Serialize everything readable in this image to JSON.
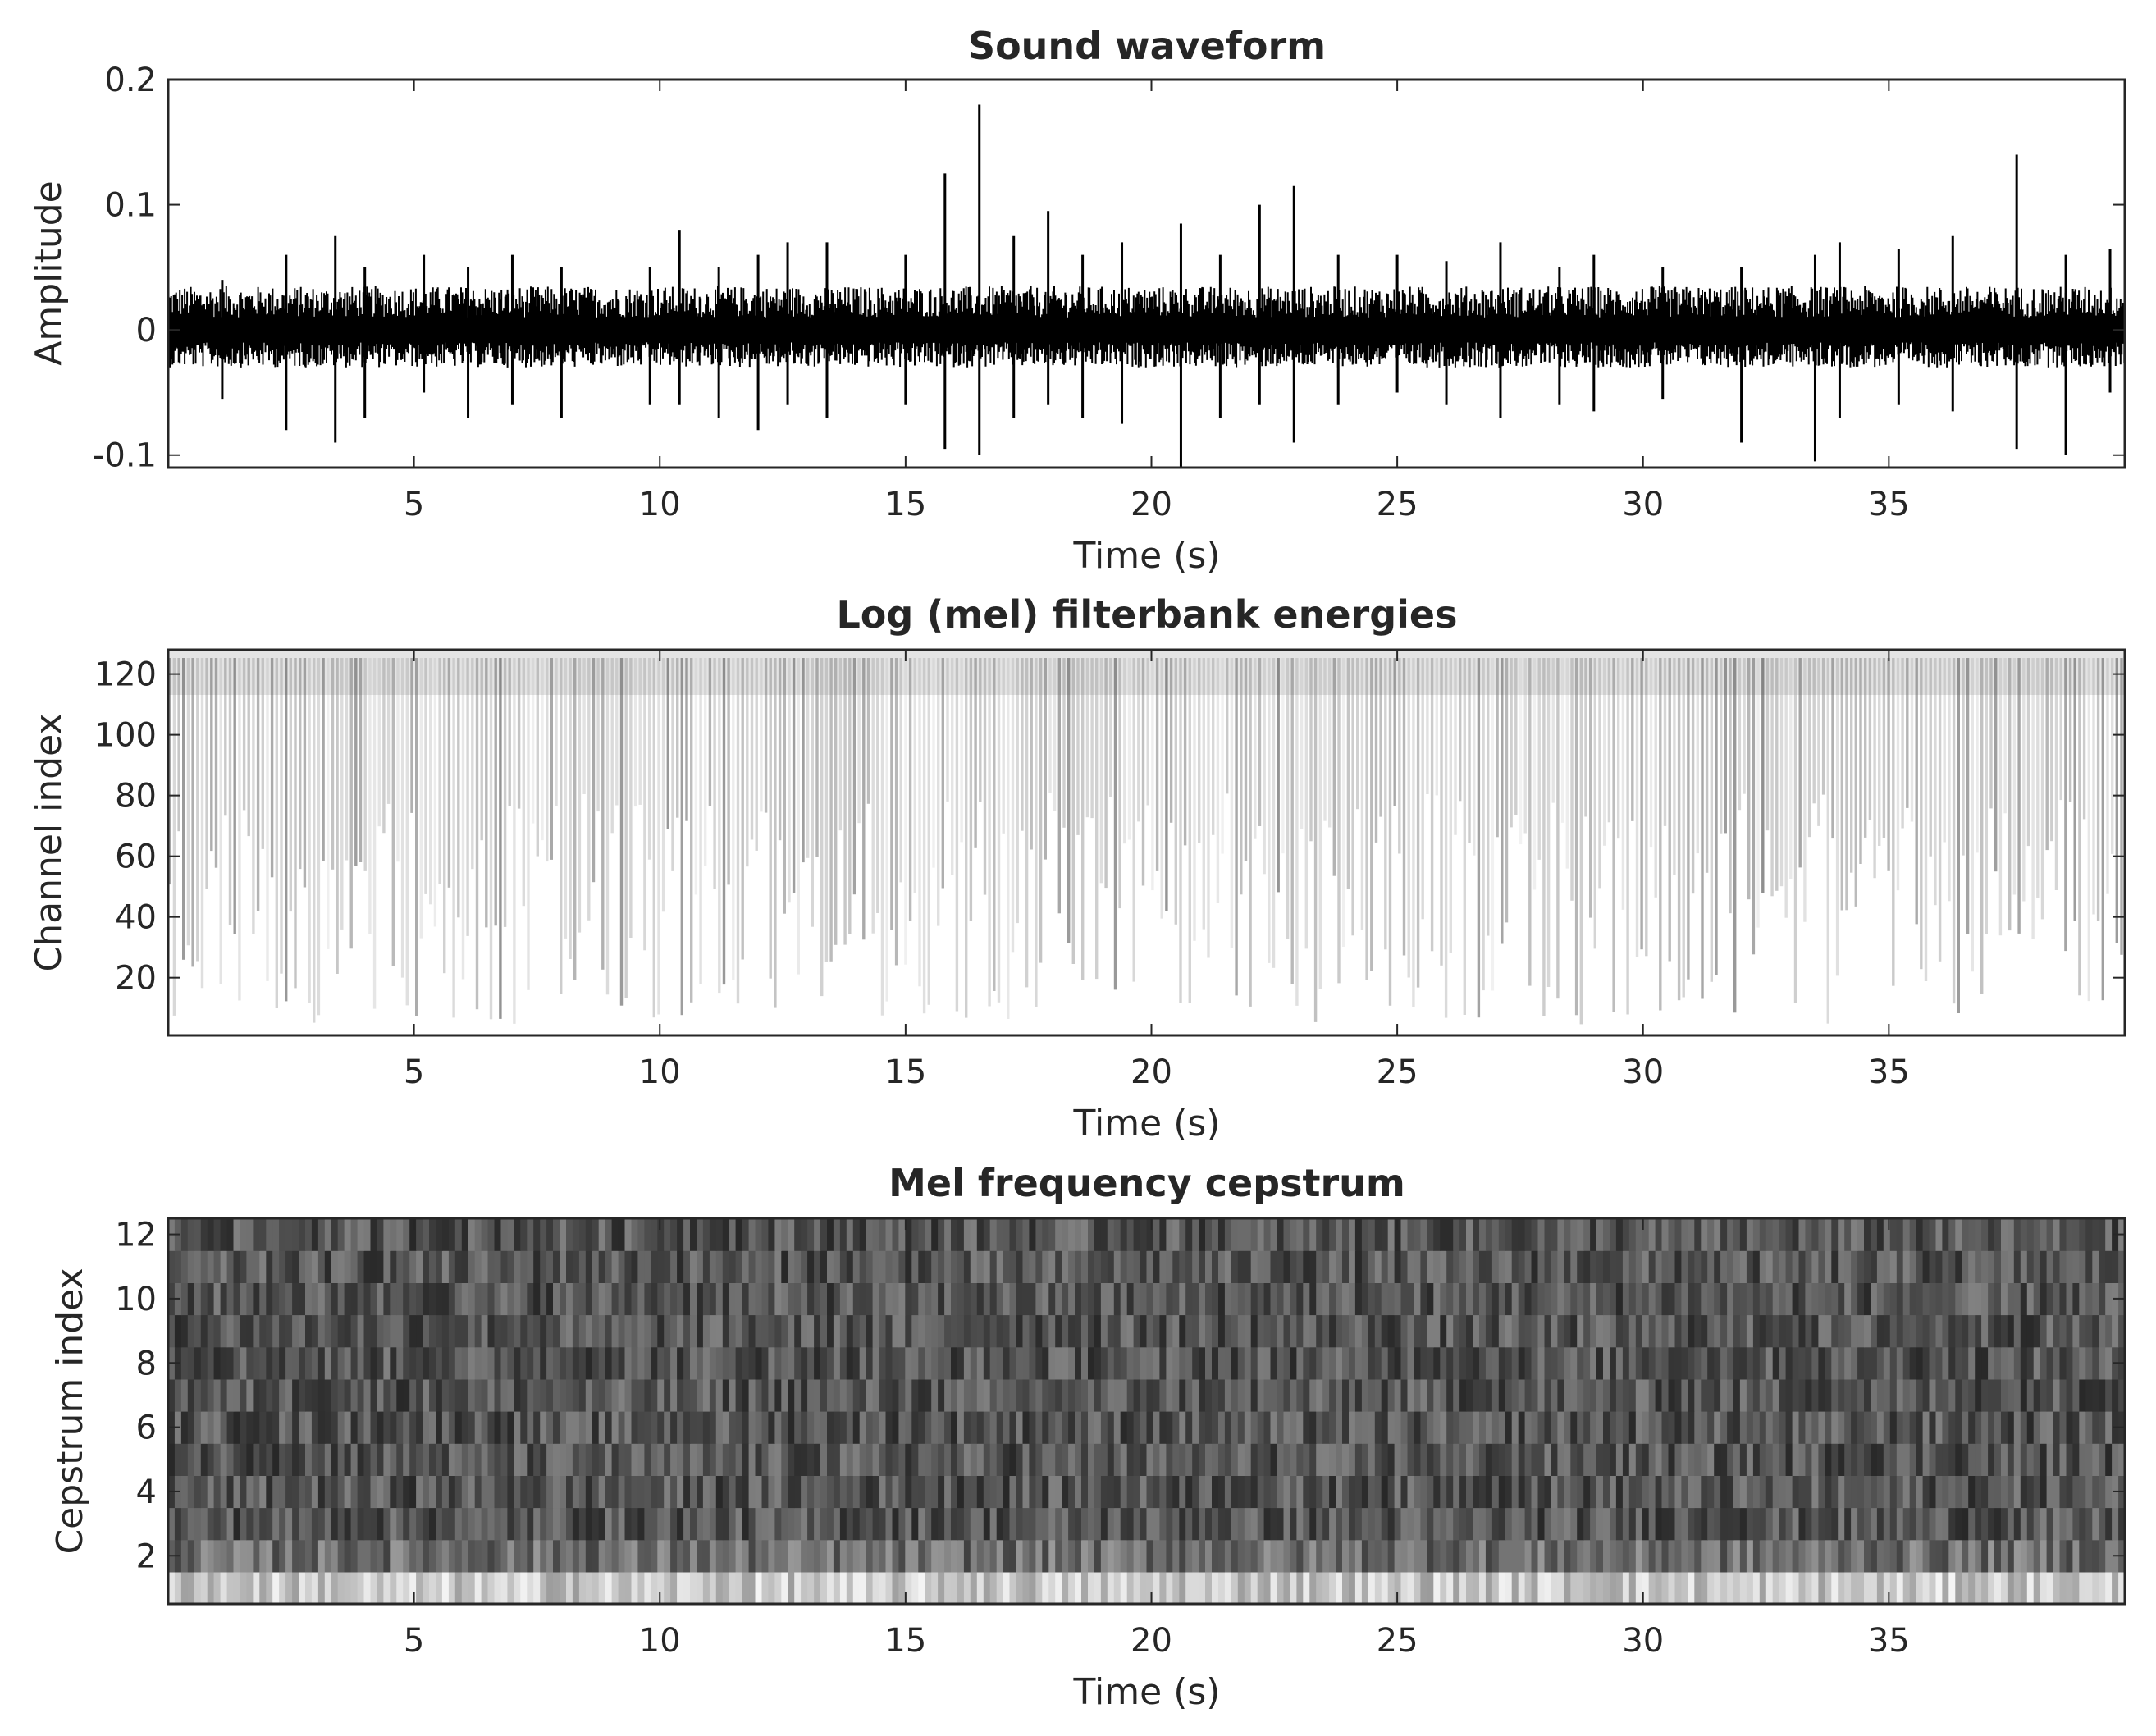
{
  "chart_data": [
    {
      "type": "line",
      "title": "Sound waveform",
      "xlabel": "Time (s)",
      "ylabel": "Amplitude",
      "xlim": [
        0,
        39.8
      ],
      "ylim": [
        -0.11,
        0.2
      ],
      "xticks": [
        5,
        10,
        15,
        20,
        25,
        30,
        35
      ],
      "xtick_labels": [
        "5",
        "10",
        "15",
        "20",
        "25",
        "30",
        "35"
      ],
      "yticks": [
        -0.1,
        0,
        0.1,
        0.2
      ],
      "ytick_labels": [
        "-0.1",
        "0",
        "0.1",
        "0.2"
      ],
      "series": [
        {
          "x": [
            1.1,
            2.4,
            3.4,
            4.0,
            5.2,
            6.1,
            7.0,
            8.0,
            9.8,
            10.4,
            11.2,
            12.0,
            12.6,
            13.4,
            15.0,
            15.8,
            16.5,
            17.2,
            17.9,
            18.6,
            19.4,
            20.6,
            21.4,
            22.2,
            22.9,
            23.8,
            25.0,
            26.0,
            27.1,
            28.3,
            29.0,
            30.4,
            32.0,
            33.5,
            34.0,
            35.2,
            36.3,
            37.6,
            38.6,
            39.5
          ],
          "y_max": [
            0.04,
            0.06,
            0.075,
            0.05,
            0.06,
            0.05,
            0.06,
            0.05,
            0.05,
            0.08,
            0.05,
            0.06,
            0.07,
            0.07,
            0.06,
            0.125,
            0.18,
            0.075,
            0.095,
            0.06,
            0.07,
            0.085,
            0.06,
            0.1,
            0.115,
            0.06,
            0.06,
            0.055,
            0.07,
            0.05,
            0.06,
            0.05,
            0.05,
            0.06,
            0.07,
            0.065,
            0.075,
            0.14,
            0.06,
            0.065
          ],
          "y_min": [
            -0.055,
            -0.08,
            -0.09,
            -0.07,
            -0.05,
            -0.07,
            -0.06,
            -0.07,
            -0.06,
            -0.06,
            -0.07,
            -0.08,
            -0.06,
            -0.07,
            -0.06,
            -0.095,
            -0.1,
            -0.07,
            -0.06,
            -0.07,
            -0.075,
            -0.11,
            -0.07,
            -0.06,
            -0.09,
            -0.06,
            -0.05,
            -0.06,
            -0.07,
            -0.06,
            -0.065,
            -0.055,
            -0.09,
            -0.105,
            -0.07,
            -0.06,
            -0.065,
            -0.095,
            -0.1,
            -0.05
          ]
        }
      ]
    },
    {
      "type": "heatmap",
      "title": "Log (mel) filterbank energies",
      "xlabel": "Time (s)",
      "ylabel": "Channel index",
      "xlim": [
        0,
        39.8
      ],
      "ylim": [
        1,
        128
      ],
      "xticks": [
        5,
        10,
        15,
        20,
        25,
        30,
        35
      ],
      "xtick_labels": [
        "5",
        "10",
        "15",
        "20",
        "25",
        "30",
        "35"
      ],
      "yticks": [
        20,
        40,
        60,
        80,
        100,
        120
      ],
      "ytick_labels": [
        "20",
        "40",
        "60",
        "80",
        "100",
        "120"
      ],
      "colormap": "gray"
    },
    {
      "type": "heatmap",
      "title": "Mel frequency cepstrum",
      "xlabel": "Time (s)",
      "ylabel": "Cepstrum index",
      "xlim": [
        0,
        39.8
      ],
      "ylim": [
        0.5,
        12.5
      ],
      "xticks": [
        5,
        10,
        15,
        20,
        25,
        30,
        35
      ],
      "xtick_labels": [
        "5",
        "10",
        "15",
        "20",
        "25",
        "30",
        "35"
      ],
      "yticks": [
        2,
        4,
        6,
        8,
        10,
        12
      ],
      "ytick_labels": [
        "2",
        "4",
        "6",
        "8",
        "10",
        "12"
      ],
      "colormap": "gray"
    }
  ]
}
